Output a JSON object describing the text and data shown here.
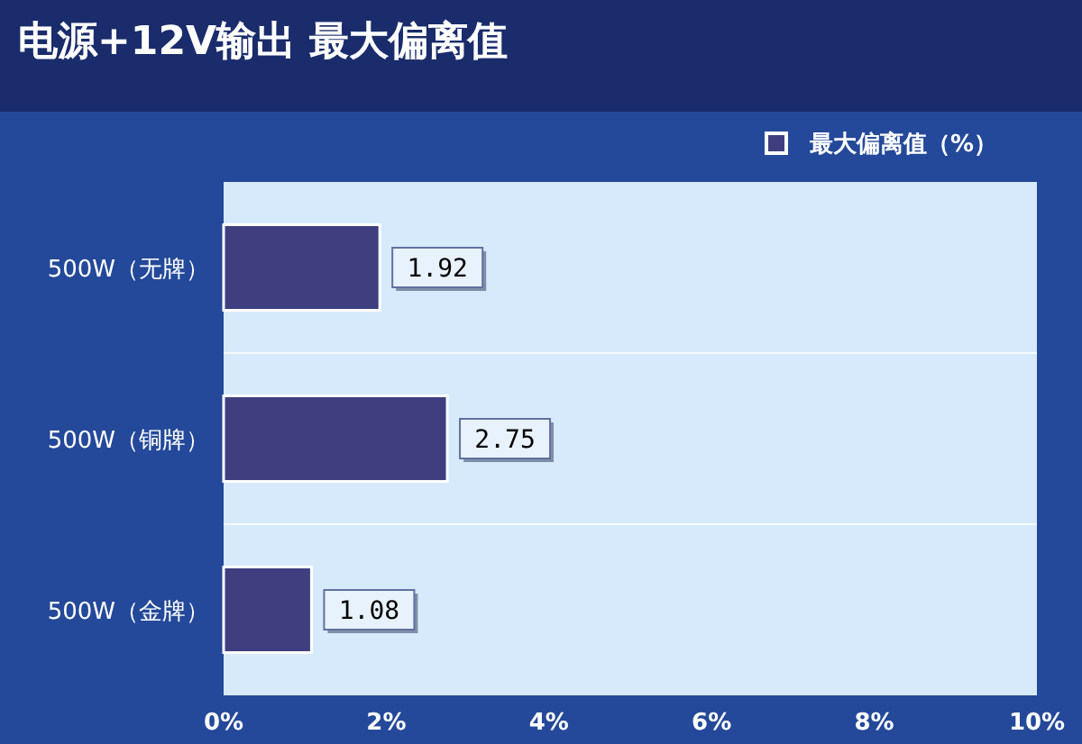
{
  "chart_data": {
    "type": "bar",
    "orientation": "horizontal",
    "title": "电源+12V输出 最大偏离值",
    "categories": [
      "500W（无牌）",
      "500W（铜牌）",
      "500W（金牌）"
    ],
    "series": [
      {
        "name": "最大偏离值（%）",
        "color": "#3f3f80",
        "values": [
          1.92,
          2.75,
          1.08
        ]
      }
    ],
    "xlim": [
      0,
      10
    ],
    "xticks": [
      {
        "value": 0,
        "label": "0%"
      },
      {
        "value": 2,
        "label": "2%"
      },
      {
        "value": 4,
        "label": "4%"
      },
      {
        "value": 6,
        "label": "6%"
      },
      {
        "value": 8,
        "label": "8%"
      },
      {
        "value": 10,
        "label": "10%"
      }
    ],
    "data_labels": true,
    "legend": "top right",
    "grid": false
  }
}
